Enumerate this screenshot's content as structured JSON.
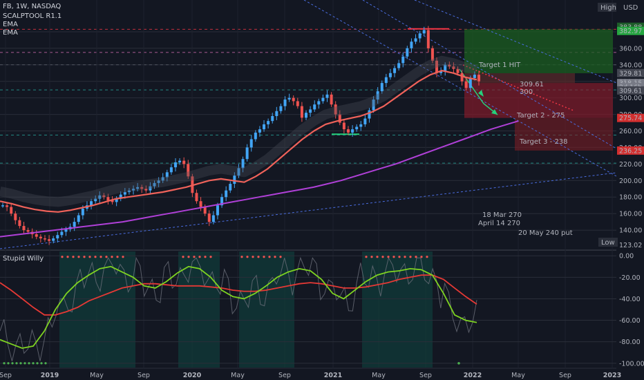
{
  "header": {
    "symbol": "FB, 1W, NASDAQ",
    "indicators": [
      "SCALPTOOL R1.1",
      "EMA",
      "EMA"
    ],
    "currency": "USD",
    "high_label": "High",
    "low_label": "Low"
  },
  "colors": {
    "background": "#131722",
    "up_candle": "#42a5f5",
    "down_candle": "#ef5350",
    "neutral_candle": "#9e9e9e",
    "ema_fast": "#f0625a",
    "ema_slow": "#b040d8",
    "target_text": "#26d07c",
    "stop_red": "#f23645",
    "oscillator_green": "#7ed321",
    "oscillator_red": "#e53935",
    "annotation_blue": "#4a7de8",
    "price_line": "#5d606b"
  },
  "chart_data": [
    {
      "type": "candlestick",
      "title": "FB, 1W, NASDAQ",
      "ylim": [
        120,
        395
      ],
      "y_ticks": [
        140,
        160,
        180,
        200,
        220,
        240,
        260,
        280,
        300,
        320,
        340,
        360,
        380
      ],
      "x_ticks": [
        "Sep",
        "2019",
        "May",
        "Sep",
        "2020",
        "May",
        "Sep",
        "2021",
        "May",
        "Sep",
        "2022",
        "May",
        "Sep",
        "2023"
      ],
      "price_labels": [
        {
          "name": "high",
          "value": "383.88",
          "bg": "#1e5c2a"
        },
        {
          "name": "target-top",
          "value": "382.97",
          "bg": "#26a641"
        },
        {
          "name": "level-329",
          "value": "329.81",
          "bg": "#434651"
        },
        {
          "name": "current",
          "value": "318.15",
          "bg": "#787b86"
        },
        {
          "name": "countdown",
          "value": "2d 16h",
          "bg": "#787b86"
        },
        {
          "name": "entry",
          "value": "309.61",
          "bg": "#434651"
        },
        {
          "name": "stop",
          "value": "275.74",
          "bg": "#d32f2f"
        },
        {
          "name": "stop-low",
          "value": "236.25",
          "bg": "#d32f2f"
        },
        {
          "name": "low",
          "value": "123.02",
          "bg": "#2a2e39"
        }
      ],
      "high_value": "383.88",
      "low_value": "123.02",
      "annotations": [
        {
          "text": "Target 1 HIT",
          "color": "#26d07c"
        },
        {
          "text": "309.61",
          "color": "#26d07c"
        },
        {
          "text": "300",
          "color": "#26d07c"
        },
        {
          "text": "Target 2 - 275",
          "color": "#26d07c"
        },
        {
          "text": "Target 3 - 238",
          "color": "#26d07c"
        },
        {
          "text": "18 Mar 270",
          "color": "#4a7de8"
        },
        {
          "text": "April 14 270",
          "color": "#4a7de8"
        },
        {
          "text": "20 May 240 put",
          "color": "#4a7de8"
        }
      ],
      "series": [
        {
          "kind": "ema",
          "values": [
            175,
            172,
            168,
            165,
            163,
            162,
            164,
            167,
            170,
            174,
            178,
            180,
            182,
            184,
            186,
            189,
            192,
            196,
            200,
            202,
            200,
            198,
            205,
            214,
            226,
            238,
            250,
            260,
            268,
            272,
            275,
            278,
            283,
            290,
            300,
            310,
            320,
            328,
            333,
            330,
            325,
            322
          ]
        },
        {
          "kind": "ema",
          "values": [
            132,
            134,
            136,
            138,
            140,
            142,
            144,
            146,
            148,
            150,
            153,
            156,
            159,
            162,
            165,
            168,
            171,
            174,
            177,
            180,
            183,
            186,
            189,
            192,
            196,
            200,
            205,
            210,
            215,
            220,
            226,
            232,
            238,
            244,
            250,
            256,
            262,
            267,
            272
          ]
        }
      ]
    },
    {
      "type": "line",
      "title": "Stupid Willy",
      "ylim": [
        -104,
        4
      ],
      "y_ticks": [
        0,
        -20,
        -40,
        -60,
        -80,
        -100
      ],
      "y_tick_labels": [
        "0.00",
        "-20.00",
        "-40.00",
        "-60.00",
        "-80.00",
        "-100.00"
      ],
      "series": [
        {
          "name": "fast",
          "color": "#7ed321",
          "values": [
            -78,
            -82,
            -86,
            -84,
            -70,
            -50,
            -35,
            -25,
            -18,
            -12,
            -10,
            -15,
            -20,
            -28,
            -30,
            -24,
            -16,
            -10,
            -12,
            -20,
            -32,
            -38,
            -40,
            -35,
            -28,
            -20,
            -15,
            -12,
            -14,
            -22,
            -35,
            -40,
            -32,
            -24,
            -18,
            -15,
            -14,
            -12,
            -13,
            -18,
            -35,
            -55,
            -60,
            -62
          ]
        },
        {
          "name": "slow",
          "color": "#e53935",
          "values": [
            -25,
            -32,
            -40,
            -48,
            -55,
            -55,
            -52,
            -48,
            -42,
            -38,
            -34,
            -30,
            -28,
            -26,
            -26,
            -27,
            -28,
            -28,
            -28,
            -29,
            -30,
            -32,
            -33,
            -33,
            -32,
            -30,
            -28,
            -26,
            -25,
            -26,
            -28,
            -30,
            -30,
            -29,
            -27,
            -25,
            -22,
            -20,
            -18,
            -18,
            -22,
            -30,
            -38,
            -45
          ]
        }
      ]
    }
  ]
}
